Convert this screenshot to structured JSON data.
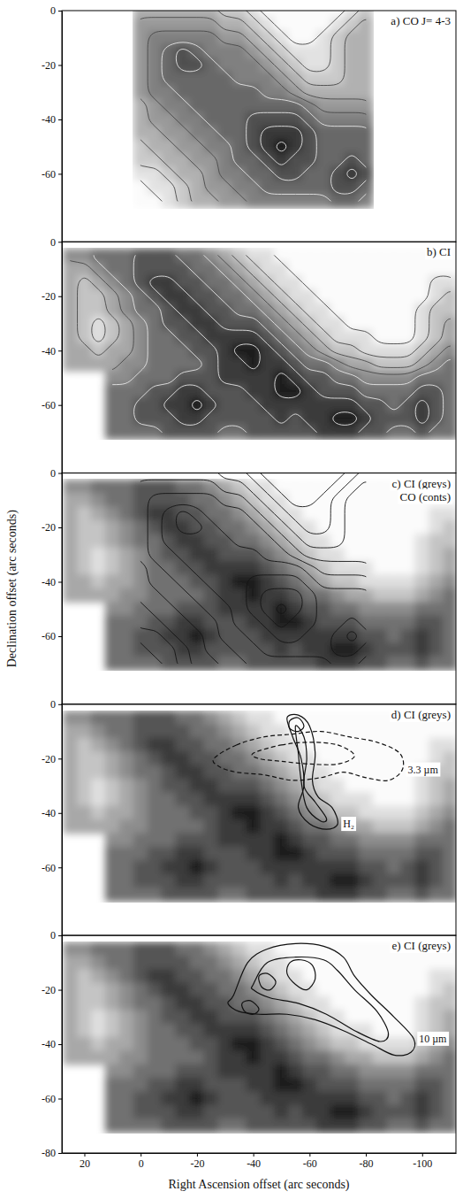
{
  "chart_data": [
    {
      "type": "contour",
      "title": "a) CO J= 4-3",
      "tick_labels": "y",
      "xlim": [
        28,
        -112
      ],
      "ylim": [
        -85,
        0
      ],
      "yticks": [
        0,
        -20,
        -40,
        -60
      ],
      "x": [
        0,
        -5,
        -10,
        -15,
        -20,
        -25,
        -30,
        -35,
        -40,
        -45,
        -50,
        -55,
        -60,
        -65,
        -70,
        -75,
        -80
      ],
      "y": [
        0,
        -5,
        -10,
        -15,
        -20,
        -25,
        -30,
        -35,
        -40,
        -45,
        -50,
        -55,
        -60,
        -65,
        -70
      ],
      "z": [
        [
          3,
          3,
          3,
          3,
          3,
          3,
          2,
          2,
          1,
          0,
          0,
          0,
          0,
          0,
          0,
          1,
          2
        ],
        [
          4,
          4,
          4,
          4,
          4,
          4,
          3,
          3,
          2,
          1,
          0,
          0,
          0,
          0,
          1,
          2,
          3
        ],
        [
          4,
          5,
          5,
          5,
          5,
          5,
          4,
          4,
          3,
          2,
          1,
          0,
          0,
          1,
          2,
          3,
          3
        ],
        [
          4,
          5,
          6,
          7,
          6,
          5,
          5,
          5,
          4,
          3,
          2,
          1,
          1,
          1,
          2,
          3,
          3
        ],
        [
          4,
          5,
          6,
          7,
          7,
          6,
          5,
          5,
          5,
          4,
          3,
          2,
          1,
          1,
          2,
          3,
          3
        ],
        [
          4,
          5,
          6,
          6,
          6,
          6,
          6,
          5,
          5,
          5,
          4,
          3,
          2,
          2,
          2,
          3,
          3
        ],
        [
          4,
          5,
          5,
          6,
          6,
          6,
          6,
          6,
          6,
          5,
          5,
          4,
          3,
          3,
          3,
          3,
          3
        ],
        [
          3,
          4,
          5,
          5,
          6,
          6,
          6,
          6,
          6,
          6,
          6,
          6,
          5,
          4,
          4,
          4,
          4
        ],
        [
          3,
          4,
          4,
          5,
          5,
          6,
          6,
          6,
          7,
          7,
          7,
          7,
          6,
          5,
          5,
          5,
          5
        ],
        [
          3,
          3,
          4,
          4,
          5,
          5,
          6,
          6,
          7,
          8,
          8,
          8,
          7,
          6,
          6,
          6,
          6
        ],
        [
          2,
          3,
          3,
          4,
          4,
          5,
          5,
          6,
          7,
          8,
          9,
          8,
          7,
          6,
          6,
          6,
          6
        ],
        [
          2,
          2,
          3,
          3,
          4,
          4,
          5,
          6,
          6,
          7,
          8,
          7,
          7,
          6,
          6,
          7,
          6
        ],
        [
          1,
          1,
          2,
          3,
          3,
          4,
          5,
          5,
          6,
          6,
          7,
          7,
          6,
          6,
          7,
          8,
          7
        ],
        [
          0,
          1,
          1,
          2,
          3,
          4,
          4,
          5,
          5,
          6,
          6,
          6,
          6,
          6,
          7,
          7,
          6
        ],
        [
          0,
          0,
          1,
          2,
          3,
          3,
          4,
          4,
          5,
          5,
          5,
          5,
          5,
          5,
          6,
          6,
          5
        ]
      ],
      "levels": [
        0.5,
        1.5,
        2.5,
        3.5,
        4.5,
        5.5,
        6.5,
        7.5,
        8.5
      ]
    },
    {
      "type": "contour",
      "title": "b) CI",
      "tick_labels": "y",
      "xlim": [
        28,
        -112
      ],
      "ylim": [
        -85,
        0
      ],
      "yticks": [
        0,
        -20,
        -40,
        -60
      ],
      "x": [
        25,
        20,
        15,
        10,
        5,
        0,
        -5,
        -10,
        -15,
        -20,
        -25,
        -30,
        -35,
        -40,
        -45,
        -50,
        -55,
        -60,
        -65,
        -70,
        -75,
        -80,
        -85,
        -90,
        -95,
        -100,
        -105,
        -110
      ],
      "y": [
        -5,
        -10,
        -15,
        -20,
        -25,
        -30,
        -35,
        -40,
        -45,
        -50,
        -55,
        -60,
        -65,
        -70
      ],
      "z": [
        [
          4,
          4,
          5,
          5,
          5,
          6,
          6,
          6,
          5,
          5,
          4,
          3,
          2,
          1,
          1,
          0,
          0,
          0,
          0,
          0,
          0,
          0,
          0,
          0,
          0,
          0,
          0,
          0
        ],
        [
          3,
          3,
          4,
          5,
          5,
          6,
          6,
          6,
          6,
          5,
          5,
          4,
          3,
          2,
          1,
          1,
          0,
          0,
          0,
          0,
          0,
          0,
          0,
          0,
          0,
          0,
          0,
          0
        ],
        [
          3,
          2,
          3,
          4,
          5,
          6,
          7,
          7,
          6,
          6,
          5,
          5,
          4,
          3,
          2,
          1,
          1,
          0,
          0,
          0,
          0,
          0,
          0,
          0,
          0,
          0,
          1,
          1
        ],
        [
          3,
          2,
          2,
          3,
          4,
          5,
          6,
          7,
          7,
          6,
          6,
          5,
          5,
          4,
          3,
          2,
          1,
          1,
          0,
          0,
          0,
          0,
          0,
          0,
          0,
          0,
          1,
          2
        ],
        [
          3,
          2,
          2,
          3,
          4,
          5,
          5,
          6,
          7,
          7,
          6,
          6,
          5,
          5,
          4,
          3,
          2,
          1,
          1,
          0,
          0,
          0,
          0,
          0,
          0,
          1,
          2,
          2
        ],
        [
          3,
          2,
          1,
          2,
          3,
          4,
          5,
          6,
          6,
          7,
          7,
          6,
          6,
          6,
          5,
          4,
          3,
          2,
          1,
          1,
          0,
          0,
          0,
          0,
          0,
          1,
          2,
          3
        ],
        [
          3,
          2,
          1,
          2,
          3,
          4,
          5,
          5,
          6,
          6,
          7,
          7,
          7,
          7,
          6,
          5,
          4,
          3,
          2,
          1,
          1,
          1,
          0,
          0,
          0,
          1,
          2,
          3
        ],
        [
          3,
          3,
          2,
          3,
          3,
          4,
          5,
          5,
          5,
          6,
          6,
          7,
          8,
          8,
          7,
          6,
          5,
          4,
          3,
          2,
          2,
          1,
          1,
          1,
          1,
          2,
          3,
          4
        ],
        [
          3,
          3,
          3,
          3,
          4,
          4,
          5,
          5,
          5,
          5,
          6,
          7,
          7,
          8,
          7,
          7,
          6,
          5,
          5,
          4,
          3,
          3,
          2,
          2,
          2,
          3,
          4,
          5
        ],
        [
          null,
          null,
          null,
          4,
          4,
          5,
          5,
          5,
          6,
          6,
          6,
          7,
          7,
          7,
          7,
          8,
          7,
          6,
          6,
          5,
          5,
          4,
          4,
          4,
          4,
          5,
          5,
          5
        ],
        [
          null,
          null,
          null,
          5,
          5,
          5,
          6,
          6,
          7,
          7,
          6,
          6,
          6,
          7,
          7,
          8,
          8,
          7,
          6,
          6,
          6,
          5,
          5,
          5,
          5,
          6,
          6,
          5
        ],
        [
          null,
          null,
          null,
          5,
          5,
          6,
          6,
          7,
          7,
          8,
          7,
          6,
          6,
          6,
          7,
          7,
          7,
          7,
          7,
          7,
          7,
          6,
          6,
          5,
          6,
          7,
          6,
          5
        ],
        [
          null,
          null,
          null,
          5,
          5,
          6,
          6,
          6,
          7,
          7,
          6,
          6,
          6,
          6,
          6,
          7,
          6,
          7,
          7,
          8,
          8,
          7,
          6,
          6,
          6,
          7,
          6,
          5
        ],
        [
          null,
          null,
          null,
          5,
          5,
          5,
          5,
          6,
          6,
          6,
          6,
          5,
          5,
          6,
          6,
          6,
          6,
          6,
          7,
          7,
          7,
          6,
          6,
          5,
          5,
          6,
          5,
          5
        ]
      ],
      "levels": [
        0.5,
        1.5,
        2.5,
        3.5,
        4.5,
        5.5,
        6.5,
        7.5
      ]
    },
    {
      "type": "contour",
      "title": "c) CI (greys)",
      "subtitle": "CO (conts)",
      "tick_labels": "y",
      "ylabel": "Declination offset (arc seconds)",
      "xlim": [
        28,
        -112
      ],
      "ylim": [
        -85,
        0
      ],
      "yticks": [
        0,
        -20,
        -40,
        -60
      ]
    },
    {
      "type": "contour",
      "title": "d) CI (greys)",
      "tick_labels": "y",
      "xlim": [
        28,
        -112
      ],
      "ylim": [
        -85,
        0
      ],
      "yticks": [
        0,
        -20,
        -40,
        -60
      ],
      "overlays": [
        {
          "label": "3.3 µm",
          "line_style": "dashed",
          "contours": [
            {
              "x": [
                -26,
                -34,
                -44,
                -54,
                -64,
                -74,
                -84,
                -92,
                -93,
                -88,
                -80,
                -72,
                -64,
                -54,
                -44,
                -34,
                -28
              ],
              "y": [
                -20,
                -15,
                -12,
                -11,
                -10,
                -12,
                -14,
                -18,
                -24,
                -28,
                -27,
                -25,
                -27,
                -28,
                -26,
                -25,
                -23
              ]
            },
            {
              "x": [
                -40,
                -50,
                -60,
                -70,
                -76,
                -70,
                -60,
                -50,
                -42
              ],
              "y": [
                -18,
                -15,
                -14,
                -15,
                -19,
                -22,
                -22,
                -21,
                -20
              ]
            }
          ]
        },
        {
          "label": "H₂",
          "line_style": "solid",
          "contours": [
            {
              "x": [
                -52,
                -56,
                -60,
                -62,
                -61,
                -63,
                -68,
                -70,
                -66,
                -60,
                -56,
                -58,
                -57,
                -54
              ],
              "y": [
                -5,
                -4,
                -8,
                -18,
                -28,
                -34,
                -38,
                -44,
                -46,
                -44,
                -38,
                -30,
                -20,
                -12
              ]
            },
            {
              "x": [
                -55,
                -58,
                -59,
                -58,
                -62,
                -66,
                -64,
                -59,
                -57,
                -56
              ],
              "y": [
                -8,
                -12,
                -20,
                -30,
                -36,
                -42,
                -43,
                -38,
                -28,
                -18
              ]
            },
            {
              "x": [
                -53,
                -56,
                -58,
                -56,
                -53
              ],
              "y": [
                -6,
                -5,
                -8,
                -10,
                -9
              ]
            }
          ]
        }
      ]
    },
    {
      "type": "contour",
      "title": "e) CI (greys)",
      "xlabel": "Right Ascension offset (arc seconds)",
      "xlim": [
        28,
        -112
      ],
      "ylim": [
        -80,
        0
      ],
      "xticks": [
        20,
        0,
        -20,
        -40,
        -60,
        -80,
        -100
      ],
      "yticks": [
        0,
        -20,
        -40,
        -60,
        -80
      ],
      "overlays": [
        {
          "label": "10 µm",
          "line_style": "solid",
          "contours": [
            {
              "x": [
                -33,
                -38,
                -45,
                -55,
                -65,
                -72,
                -76,
                -82,
                -90,
                -97,
                -96,
                -90,
                -82,
                -72,
                -62,
                -52,
                -42,
                -35,
                -31
              ],
              "y": [
                -22,
                -10,
                -5,
                -3,
                -4,
                -8,
                -15,
                -22,
                -30,
                -38,
                -43,
                -44,
                -40,
                -35,
                -31,
                -29,
                -29,
                -28,
                -25
              ]
            },
            {
              "x": [
                -40,
                -45,
                -55,
                -65,
                -70,
                -76,
                -84,
                -88,
                -85,
                -76,
                -66,
                -56,
                -46,
                -40
              ],
              "y": [
                -18,
                -10,
                -8,
                -9,
                -13,
                -20,
                -28,
                -36,
                -39,
                -35,
                -29,
                -25,
                -23,
                -20
              ]
            },
            {
              "x": [
                -53,
                -57,
                -61,
                -62,
                -59,
                -55,
                -52
              ],
              "y": [
                -10,
                -9,
                -11,
                -16,
                -20,
                -18,
                -14
              ]
            },
            {
              "x": [
                -36,
                -39,
                -42,
                -40,
                -37
              ],
              "y": [
                -25,
                -24,
                -27,
                -29,
                -28
              ]
            },
            {
              "x": [
                -42,
                -45,
                -48,
                -46,
                -43
              ],
              "y": [
                -15,
                -14,
                -17,
                -20,
                -19
              ]
            }
          ]
        }
      ]
    }
  ]
}
